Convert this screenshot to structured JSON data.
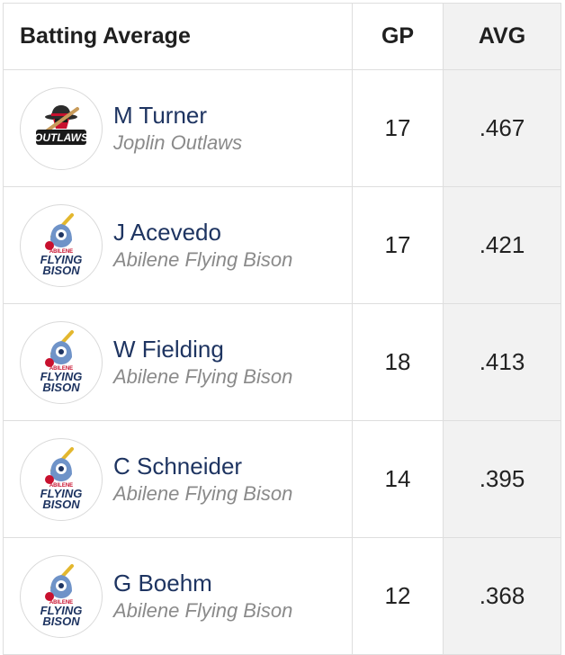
{
  "table": {
    "header": {
      "title": "Batting Average",
      "gp": "GP",
      "avg": "AVG"
    },
    "rows": [
      {
        "player": "M Turner",
        "team": "Joplin Outlaws",
        "gp": "17",
        "avg": ".467",
        "logo_icon": "outlaws-logo-icon"
      },
      {
        "player": "J Acevedo",
        "team": "Abilene Flying Bison",
        "gp": "17",
        "avg": ".421",
        "logo_icon": "flying-bison-logo-icon"
      },
      {
        "player": "W Fielding",
        "team": "Abilene Flying Bison",
        "gp": "18",
        "avg": ".413",
        "logo_icon": "flying-bison-logo-icon"
      },
      {
        "player": "C Schneider",
        "team": "Abilene Flying Bison",
        "gp": "14",
        "avg": ".395",
        "logo_icon": "flying-bison-logo-icon"
      },
      {
        "player": "G Boehm",
        "team": "Abilene Flying Bison",
        "gp": "12",
        "avg": ".368",
        "logo_icon": "flying-bison-logo-icon"
      }
    ]
  },
  "logos": {
    "outlaws": {
      "wordmark": "OUTLAWS"
    },
    "flying_bison": {
      "line1": "ABILENE",
      "line2": "FLYING",
      "line3": "BISON"
    }
  },
  "colors": {
    "player_link": "#1e3461",
    "team_text": "#8a8a8a",
    "avg_column_bg": "#f2f2f2",
    "border": "#dedede"
  }
}
